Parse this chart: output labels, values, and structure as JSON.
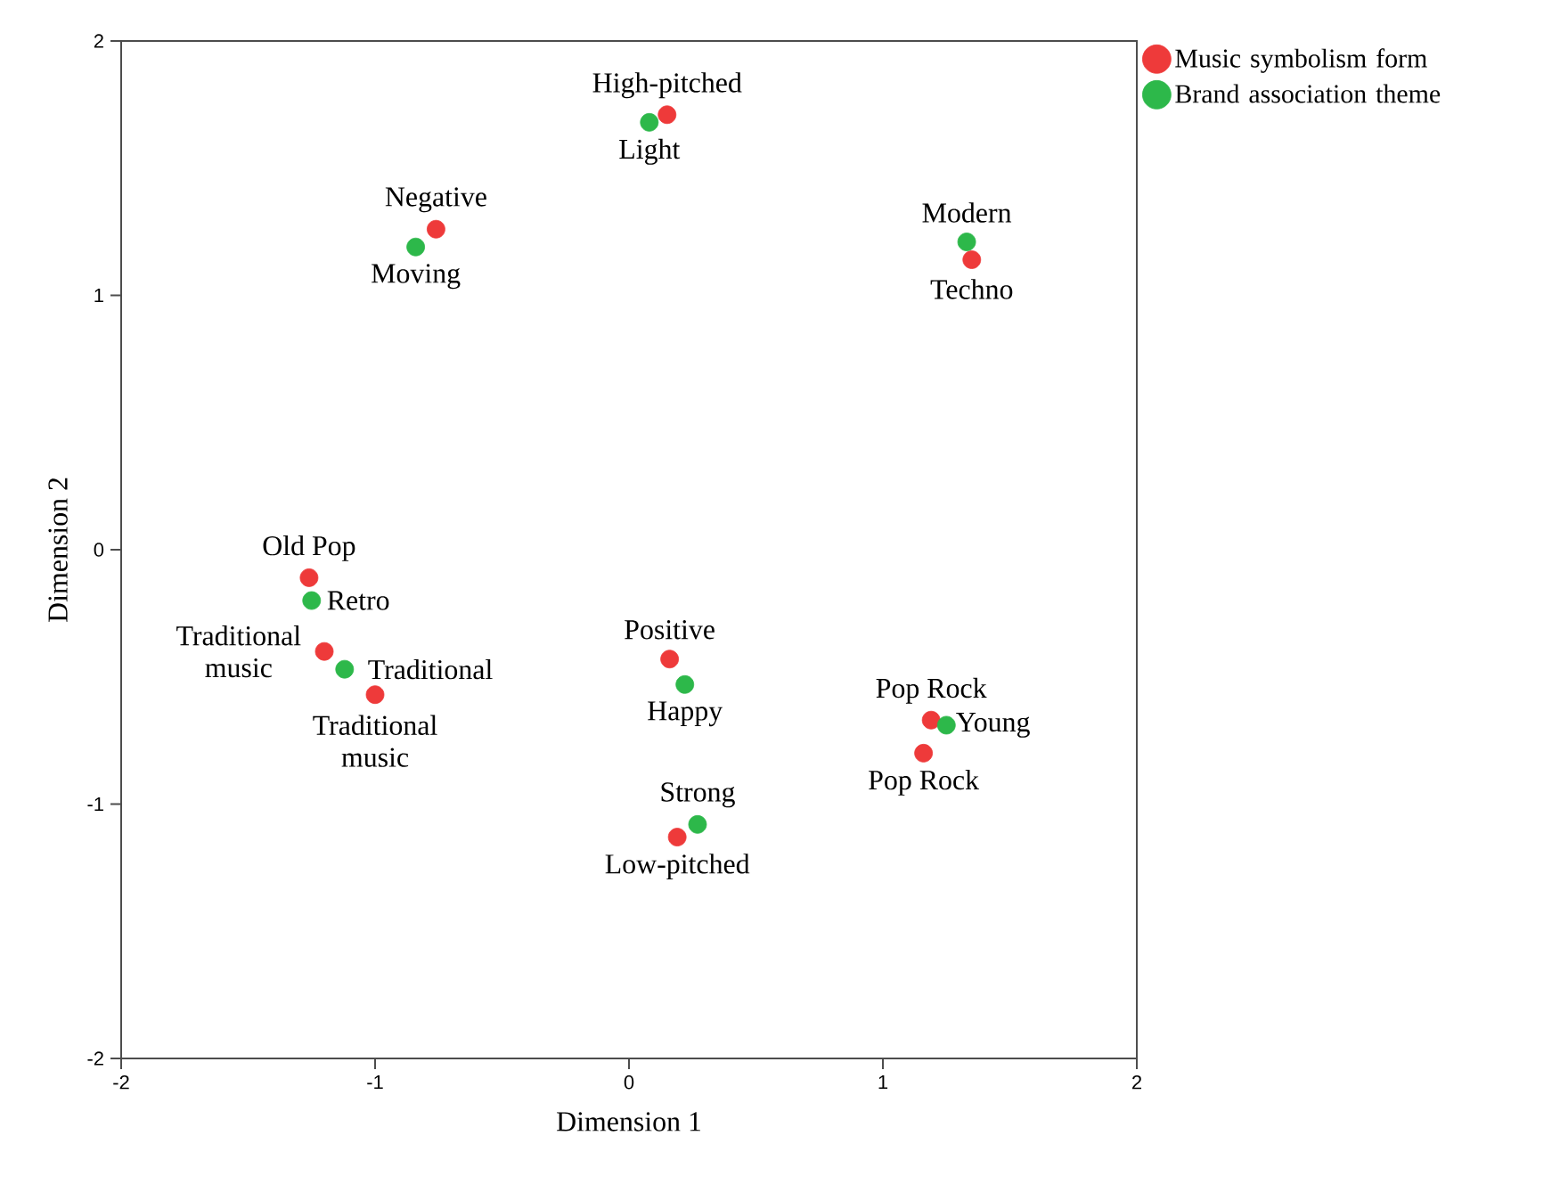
{
  "chart_data": {
    "type": "scatter",
    "xlabel": "Dimension 1",
    "ylabel": "Dimension 2",
    "xlim": [
      -2,
      2
    ],
    "ylim": [
      -2,
      2
    ],
    "xticks": [
      -2,
      -1,
      0,
      1,
      2
    ],
    "yticks": [
      -2,
      -1,
      0,
      1,
      2
    ],
    "grid": false,
    "legend": "top right",
    "marker": "circle",
    "series": [
      {
        "name": "Music symbolism form",
        "color": "#ee3a3a",
        "x": [
          0.15,
          -0.76,
          1.35,
          -1.26,
          -1.2,
          -1.0,
          0.16,
          0.19,
          1.19,
          1.16
        ],
        "values": [
          1.71,
          1.26,
          1.14,
          -0.11,
          -0.4,
          -0.57,
          -0.43,
          -1.13,
          -0.67,
          -0.8
        ],
        "value_labels": [
          "High-pitched",
          "Negative",
          "Techno",
          "Old Pop",
          "Traditional music",
          "Traditional music",
          "Positive",
          "Low-pitched",
          "Pop Rock",
          "Pop Rock"
        ]
      },
      {
        "name": "Brand association theme",
        "color": "#2db84a",
        "x": [
          0.08,
          -0.84,
          1.33,
          -1.25,
          -1.12,
          0.22,
          0.27,
          1.25
        ],
        "values": [
          1.68,
          1.19,
          1.21,
          -0.2,
          -0.47,
          -0.53,
          -1.08,
          -0.69
        ],
        "value_labels": [
          "Light",
          "Moving",
          "Modern",
          "Retro",
          "Traditional",
          "Happy",
          "Strong",
          "Young"
        ]
      }
    ]
  }
}
